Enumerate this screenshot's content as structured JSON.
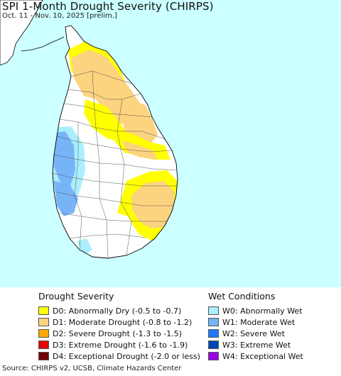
{
  "title": "SPI 1-Month Drought Severity (CHIRPS)",
  "subtitle": "Oct. 11 - Nov. 10, 2025 [prelim.]",
  "colors": {
    "ocean": "#ccffff",
    "land": "#ffffff",
    "D0": "#ffff00",
    "D1": "#fcd37f",
    "D2": "#ffaa00",
    "D3": "#e60000",
    "D4": "#730000",
    "W0": "#aaeeff",
    "W1": "#77b4f7",
    "W2": "#1e78ff",
    "W3": "#0046b4",
    "W4": "#9b00e6"
  },
  "legend": {
    "drought": {
      "heading": "Drought Severity",
      "items": [
        {
          "code": "D0",
          "label": "D0: Abnormally Dry (-0.5 to -0.7)",
          "color": "#ffff00"
        },
        {
          "code": "D1",
          "label": "D1: Moderate Drought (-0.8 to -1.2)",
          "color": "#fcd37f"
        },
        {
          "code": "D2",
          "label": "D2: Severe Drought (-1.3 to -1.5)",
          "color": "#ffaa00"
        },
        {
          "code": "D3",
          "label": "D3: Extreme Drought (-1.6 to -1.9)",
          "color": "#e60000"
        },
        {
          "code": "D4",
          "label": "D4: Exceptional Drought (-2.0 or less)",
          "color": "#730000"
        }
      ]
    },
    "wet": {
      "heading": "Wet Conditions",
      "items": [
        {
          "code": "W0",
          "label": "W0: Abnormally Wet",
          "color": "#aaeeff"
        },
        {
          "code": "W1",
          "label": "W1: Moderate Wet",
          "color": "#77b4f7"
        },
        {
          "code": "W2",
          "label": "W2: Severe Wet",
          "color": "#1e78ff"
        },
        {
          "code": "W3",
          "label": "W3: Extreme Wet",
          "color": "#0046b4"
        },
        {
          "code": "W4",
          "label": "W4: Exceptional Wet",
          "color": "#9b00e6"
        }
      ]
    }
  },
  "source": "Source: CHIRPS v2, UCSB, Climate Hazards Center"
}
